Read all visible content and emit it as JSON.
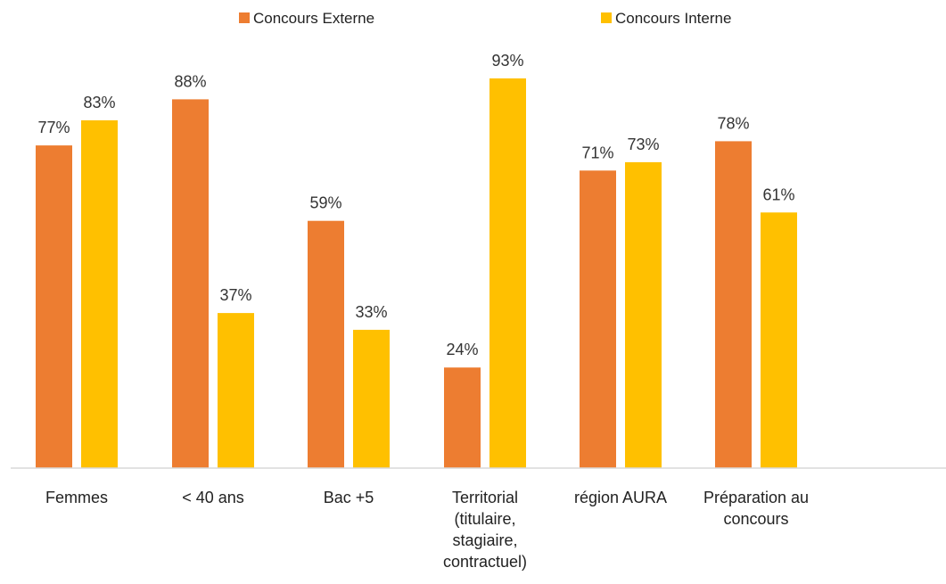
{
  "chart_data": {
    "type": "bar",
    "title": "",
    "xlabel": "",
    "ylabel": "",
    "ylim": [
      0,
      100
    ],
    "grid": false,
    "legend_position": "top",
    "categories": [
      [
        "Femmes"
      ],
      [
        "< 40 ans"
      ],
      [
        "Bac +5"
      ],
      [
        "Territorial",
        "(titulaire,",
        "stagiaire,",
        "contractuel)"
      ],
      [
        "région AURA"
      ],
      [
        "Préparation au",
        "concours"
      ]
    ],
    "series": [
      {
        "name": "Concours Externe",
        "color": "#ED7D31",
        "values": [
          77,
          88,
          59,
          24,
          71,
          78
        ],
        "labels": [
          "77%",
          "88%",
          "59%",
          "24%",
          "71%",
          "78%"
        ]
      },
      {
        "name": "Concours Interne",
        "color": "#FFC000",
        "values": [
          83,
          37,
          33,
          93,
          73,
          61
        ],
        "labels": [
          "83%",
          "37%",
          "33%",
          "93%",
          "73%",
          "61%"
        ]
      }
    ]
  }
}
